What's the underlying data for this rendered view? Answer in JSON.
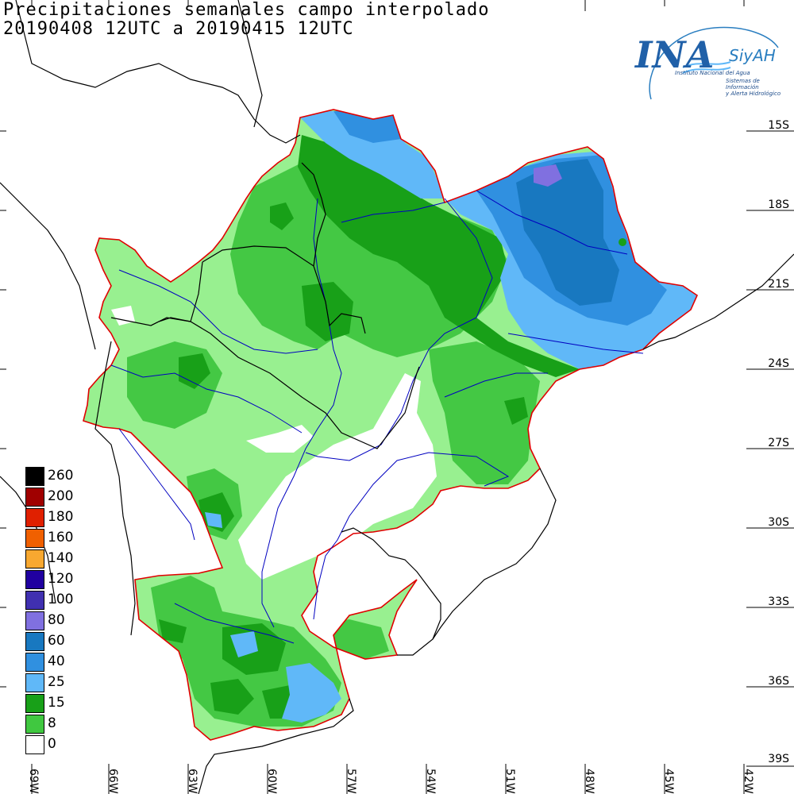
{
  "title": {
    "line1": "Precipitaciones semanales campo interpolado",
    "line2": "20190408 12UTC a 20190415 12UTC"
  },
  "logo": {
    "main": "INA",
    "system": "SiyAH",
    "institution": "Instituto Nacional del Agua",
    "tagline_1": "Sistemas de Información",
    "tagline_2": "y Alerta Hidrológico"
  },
  "latitude_labels": [
    "15S",
    "18S",
    "21S",
    "24S",
    "27S",
    "30S",
    "33S",
    "36S",
    "39S"
  ],
  "longitude_labels": [
    "69W",
    "66W",
    "63W",
    "60W",
    "57W",
    "54W",
    "51W",
    "48W",
    "45W",
    "42W"
  ],
  "legend": [
    {
      "label": "260",
      "color": "#000000"
    },
    {
      "label": "200",
      "color": "#a00000"
    },
    {
      "label": "180",
      "color": "#e02000"
    },
    {
      "label": "160",
      "color": "#f06000"
    },
    {
      "label": "140",
      "color": "#f8a830"
    },
    {
      "label": "120",
      "color": "#2000a0"
    },
    {
      "label": "100",
      "color": "#4030b0"
    },
    {
      "label": "80",
      "color": "#8070e0"
    },
    {
      "label": "60",
      "color": "#1878c0"
    },
    {
      "label": "40",
      "color": "#3090e0"
    },
    {
      "label": "25",
      "color": "#60b8f8"
    },
    {
      "label": "15",
      "color": "#18a018"
    },
    {
      "label": "8",
      "color": "#40c840"
    },
    {
      "label": "0",
      "color": "#ffffff"
    }
  ],
  "colors": {
    "basin_outline": "#e00000",
    "rivers": "#0000c0",
    "borders": "#000000",
    "light_green": "#98f090"
  }
}
